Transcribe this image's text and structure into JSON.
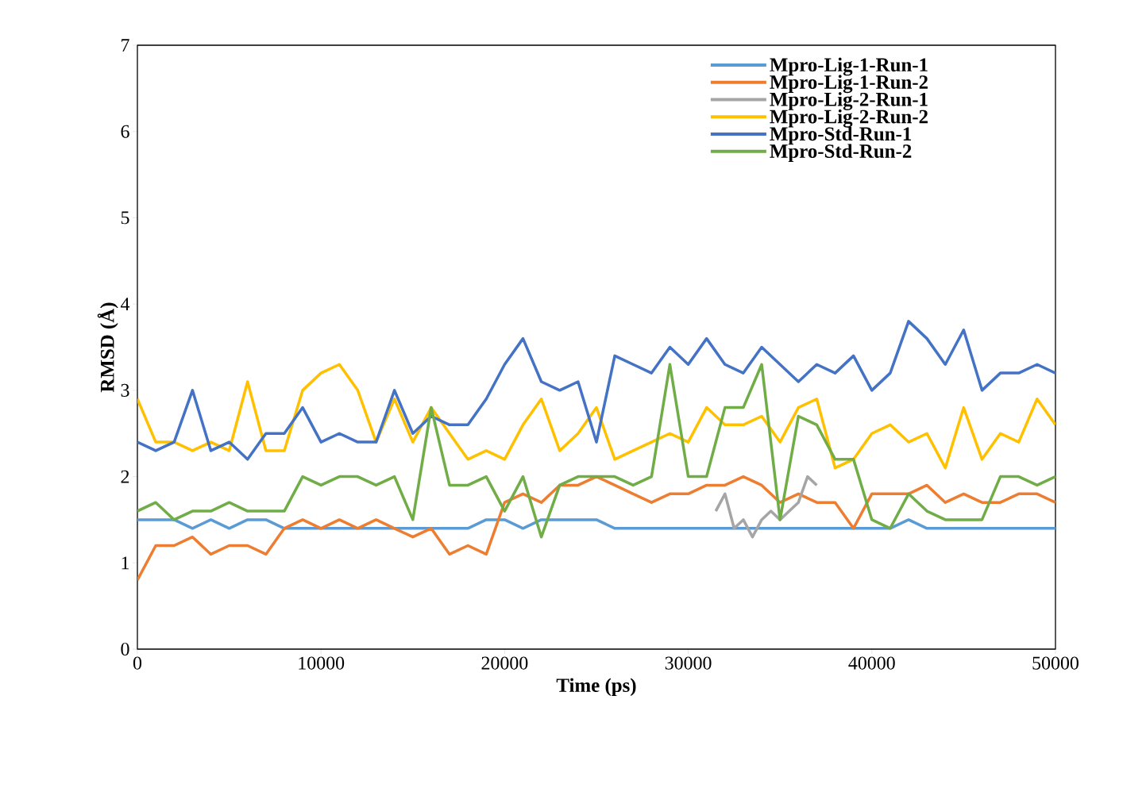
{
  "chart_data": {
    "type": "line",
    "xlabel": "Time (ps)",
    "ylabel": "RMSD (Å)",
    "x": [
      0,
      1000,
      2000,
      3000,
      4000,
      5000,
      6000,
      7000,
      8000,
      9000,
      10000,
      11000,
      12000,
      13000,
      14000,
      15000,
      16000,
      17000,
      18000,
      19000,
      20000,
      21000,
      22000,
      23000,
      24000,
      25000,
      26000,
      27000,
      28000,
      29000,
      30000,
      31000,
      32000,
      33000,
      34000,
      35000,
      36000,
      37000,
      38000,
      39000,
      40000,
      41000,
      42000,
      43000,
      44000,
      45000,
      46000,
      47000,
      48000,
      49000,
      50000
    ],
    "series": [
      {
        "name": "Mpro-Lig-1-Run-1",
        "color": "#5b9bd5",
        "values": [
          1.5,
          1.5,
          1.5,
          1.4,
          1.5,
          1.4,
          1.5,
          1.5,
          1.4,
          1.4,
          1.4,
          1.4,
          1.4,
          1.4,
          1.4,
          1.4,
          1.4,
          1.4,
          1.4,
          1.5,
          1.5,
          1.4,
          1.5,
          1.5,
          1.5,
          1.5,
          1.4,
          1.4,
          1.4,
          1.4,
          1.4,
          1.4,
          1.4,
          1.4,
          1.4,
          1.4,
          1.4,
          1.4,
          1.4,
          1.4,
          1.4,
          1.4,
          1.5,
          1.4,
          1.4,
          1.4,
          1.4,
          1.4,
          1.4,
          1.4,
          1.4
        ]
      },
      {
        "name": "Mpro-Lig-1-Run-2",
        "color": "#ed7d31",
        "values": [
          0.8,
          1.2,
          1.2,
          1.3,
          1.1,
          1.2,
          1.2,
          1.1,
          1.4,
          1.5,
          1.4,
          1.5,
          1.4,
          1.5,
          1.4,
          1.3,
          1.4,
          1.1,
          1.2,
          1.1,
          1.7,
          1.8,
          1.7,
          1.9,
          1.9,
          2.0,
          1.9,
          1.8,
          1.7,
          1.8,
          1.8,
          1.9,
          1.9,
          2.0,
          1.9,
          1.7,
          1.8,
          1.7,
          1.7,
          1.4,
          1.8,
          1.8,
          1.8,
          1.9,
          1.7,
          1.8,
          1.7,
          1.7,
          1.8,
          1.8,
          1.7
        ]
      },
      {
        "name": "Mpro-Lig-2-Run-1",
        "color": "#a5a5a5",
        "x": [
          31500,
          32000,
          32500,
          33000,
          33500,
          34000,
          34500,
          35000,
          35500,
          36000,
          36500,
          37000
        ],
        "values": [
          1.6,
          1.8,
          1.4,
          1.5,
          1.3,
          1.5,
          1.6,
          1.5,
          1.6,
          1.7,
          2.0,
          1.9
        ]
      },
      {
        "name": "Mpro-Lig-2-Run-2",
        "color": "#ffc000",
        "values": [
          2.9,
          2.4,
          2.4,
          2.3,
          2.4,
          2.3,
          3.1,
          2.3,
          2.3,
          3.0,
          3.2,
          3.3,
          3.0,
          2.4,
          2.9,
          2.4,
          2.8,
          2.5,
          2.2,
          2.3,
          2.2,
          2.6,
          2.9,
          2.3,
          2.5,
          2.8,
          2.2,
          2.3,
          2.4,
          2.5,
          2.4,
          2.8,
          2.6,
          2.6,
          2.7,
          2.4,
          2.8,
          2.9,
          2.1,
          2.2,
          2.5,
          2.6,
          2.4,
          2.5,
          2.1,
          2.8,
          2.2,
          2.5,
          2.4,
          2.9,
          2.6
        ]
      },
      {
        "name": "Mpro-Std-Run-1",
        "color": "#4472c4",
        "values": [
          2.4,
          2.3,
          2.4,
          3.0,
          2.3,
          2.4,
          2.2,
          2.5,
          2.5,
          2.8,
          2.4,
          2.5,
          2.4,
          2.4,
          3.0,
          2.5,
          2.7,
          2.6,
          2.6,
          2.9,
          3.3,
          3.6,
          3.1,
          3.0,
          3.1,
          2.4,
          3.4,
          3.3,
          3.2,
          3.5,
          3.3,
          3.6,
          3.3,
          3.2,
          3.5,
          3.3,
          3.1,
          3.3,
          3.2,
          3.4,
          3.0,
          3.2,
          3.8,
          3.6,
          3.3,
          3.7,
          3.0,
          3.2,
          3.2,
          3.3,
          3.2
        ]
      },
      {
        "name": "Mpro-Std-Run-2",
        "color": "#70ad47",
        "values": [
          1.6,
          1.7,
          1.5,
          1.6,
          1.6,
          1.7,
          1.6,
          1.6,
          1.6,
          2.0,
          1.9,
          2.0,
          2.0,
          1.9,
          2.0,
          1.5,
          2.8,
          1.9,
          1.9,
          2.0,
          1.6,
          2.0,
          1.3,
          1.9,
          2.0,
          2.0,
          2.0,
          1.9,
          2.0,
          3.3,
          2.0,
          2.0,
          2.8,
          2.8,
          3.3,
          1.5,
          2.7,
          2.6,
          2.2,
          2.2,
          1.5,
          1.4,
          1.8,
          1.6,
          1.5,
          1.5,
          1.5,
          2.0,
          2.0,
          1.9,
          2.0
        ]
      }
    ],
    "xlim": [
      0,
      50000
    ],
    "ylim": [
      0,
      7
    ],
    "xticks": [
      0,
      10000,
      20000,
      30000,
      40000,
      50000
    ],
    "yticks": [
      0,
      1,
      2,
      3,
      4,
      5,
      6,
      7
    ],
    "grid": false,
    "legend": "top right",
    "marker": "none",
    "line_style": "solid"
  }
}
